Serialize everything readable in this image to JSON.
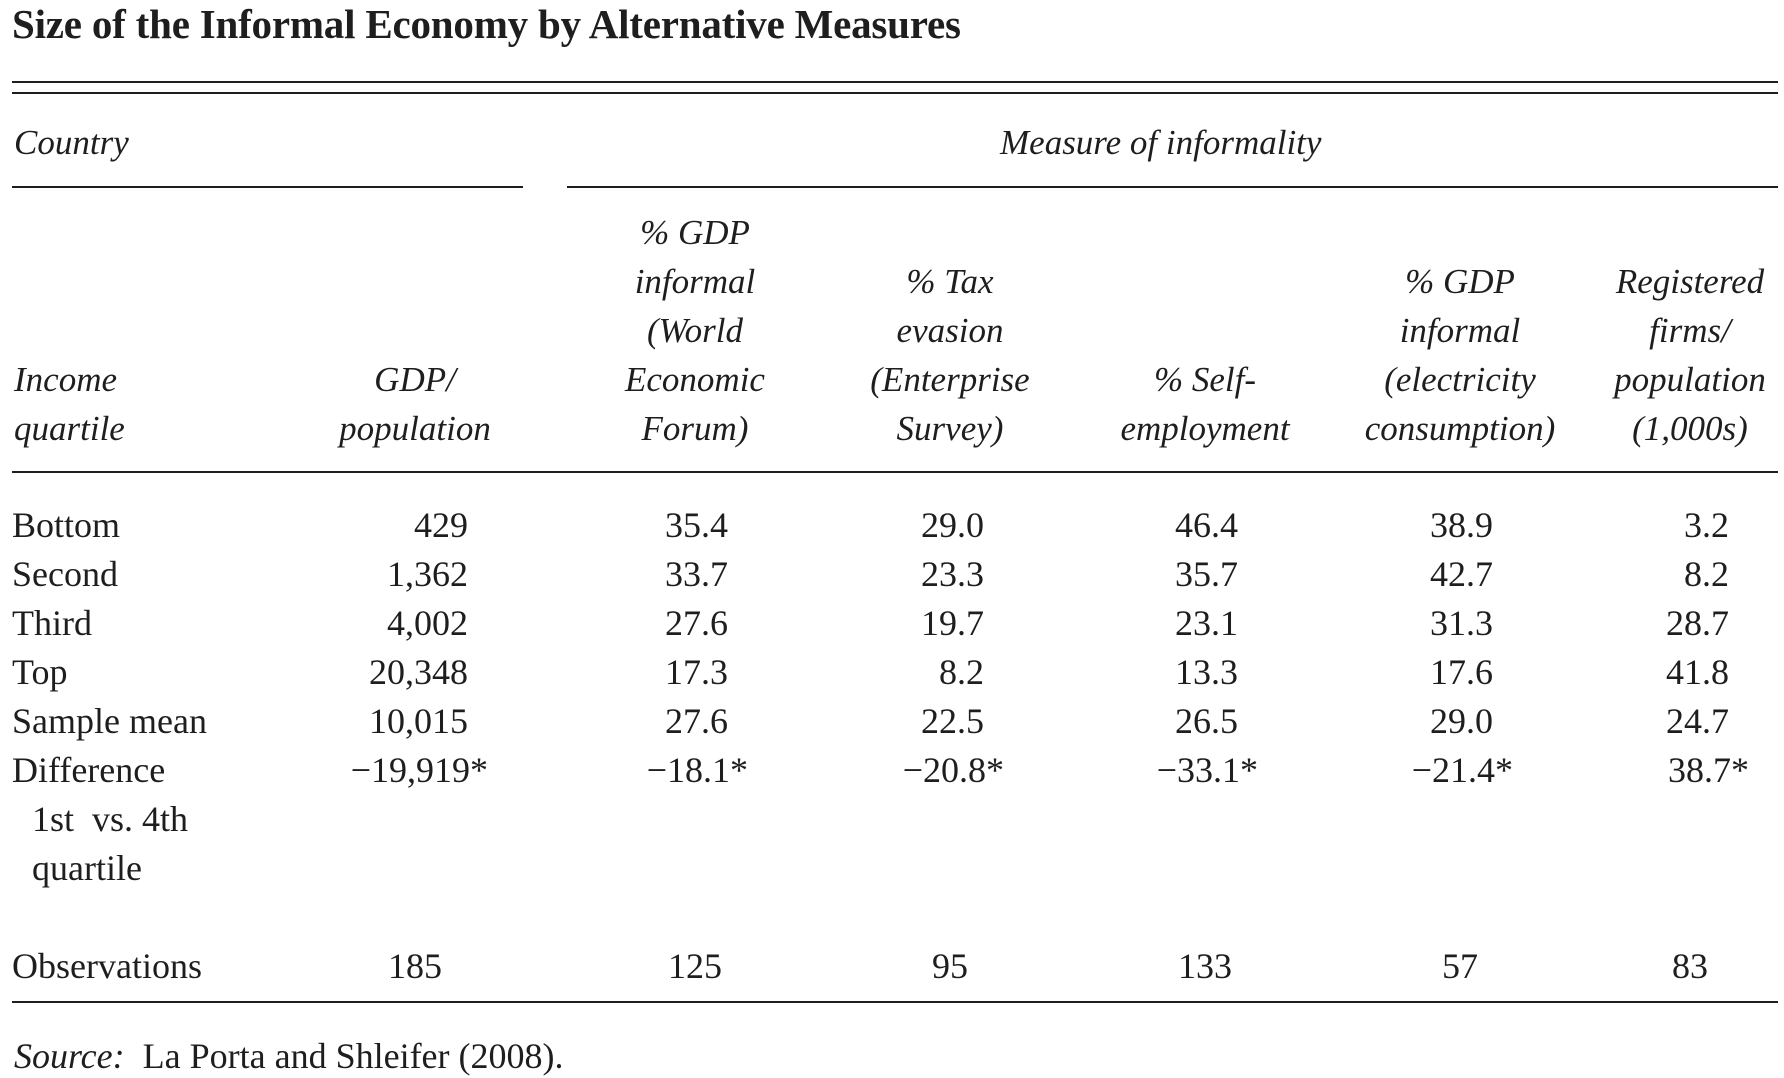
{
  "title": "Size of the Informal Economy by Alternative Measures",
  "header": {
    "country_label": "Country",
    "measure_label": "Measure of informality",
    "income_label": [
      "Income",
      "quartile"
    ],
    "columns": [
      {
        "lines": [
          "GDP/",
          "population"
        ]
      },
      {
        "lines": [
          "% GDP",
          "informal",
          "(World",
          "Economic",
          "Forum)"
        ]
      },
      {
        "lines": [
          "% Tax",
          "evasion",
          "(Enterprise",
          "Survey)"
        ]
      },
      {
        "lines": [
          "% Self-",
          "employment"
        ]
      },
      {
        "lines": [
          "% GDP",
          "informal",
          "(electricity",
          "consumption)"
        ]
      },
      {
        "lines": [
          "Registered",
          "firms/",
          "population",
          "(1,000s)"
        ]
      }
    ]
  },
  "rows": [
    {
      "label": "Bottom",
      "values": [
        "429",
        "35.4",
        "29.0",
        "46.4",
        "38.9",
        "3.2"
      ]
    },
    {
      "label": "Second",
      "values": [
        "1,362",
        "33.7",
        "23.3",
        "35.7",
        "42.7",
        "8.2"
      ]
    },
    {
      "label": "Third",
      "values": [
        "4,002",
        "27.6",
        "19.7",
        "23.1",
        "31.3",
        "28.7"
      ]
    },
    {
      "label": "Top",
      "values": [
        "20,348",
        "17.3",
        "8.2",
        "13.3",
        "17.6",
        "41.8"
      ]
    },
    {
      "label": "Sample mean",
      "values": [
        "10,015",
        "27.6",
        "22.5",
        "26.5",
        "29.0",
        "24.7"
      ]
    }
  ],
  "difference_row": {
    "label_lines": [
      "Difference",
      "1st  vs. 4th",
      "quartile"
    ],
    "values": [
      "−19,919*",
      "−18.1*",
      "−20.8*",
      "−33.1*",
      "−21.4*",
      "38.7*"
    ]
  },
  "observations_row": {
    "label": "Observations",
    "values": [
      "185",
      "125",
      "95",
      "133",
      "57",
      "83"
    ]
  },
  "source": {
    "label": "Source:",
    "text": "La Porta and Shleifer (2008)."
  }
}
